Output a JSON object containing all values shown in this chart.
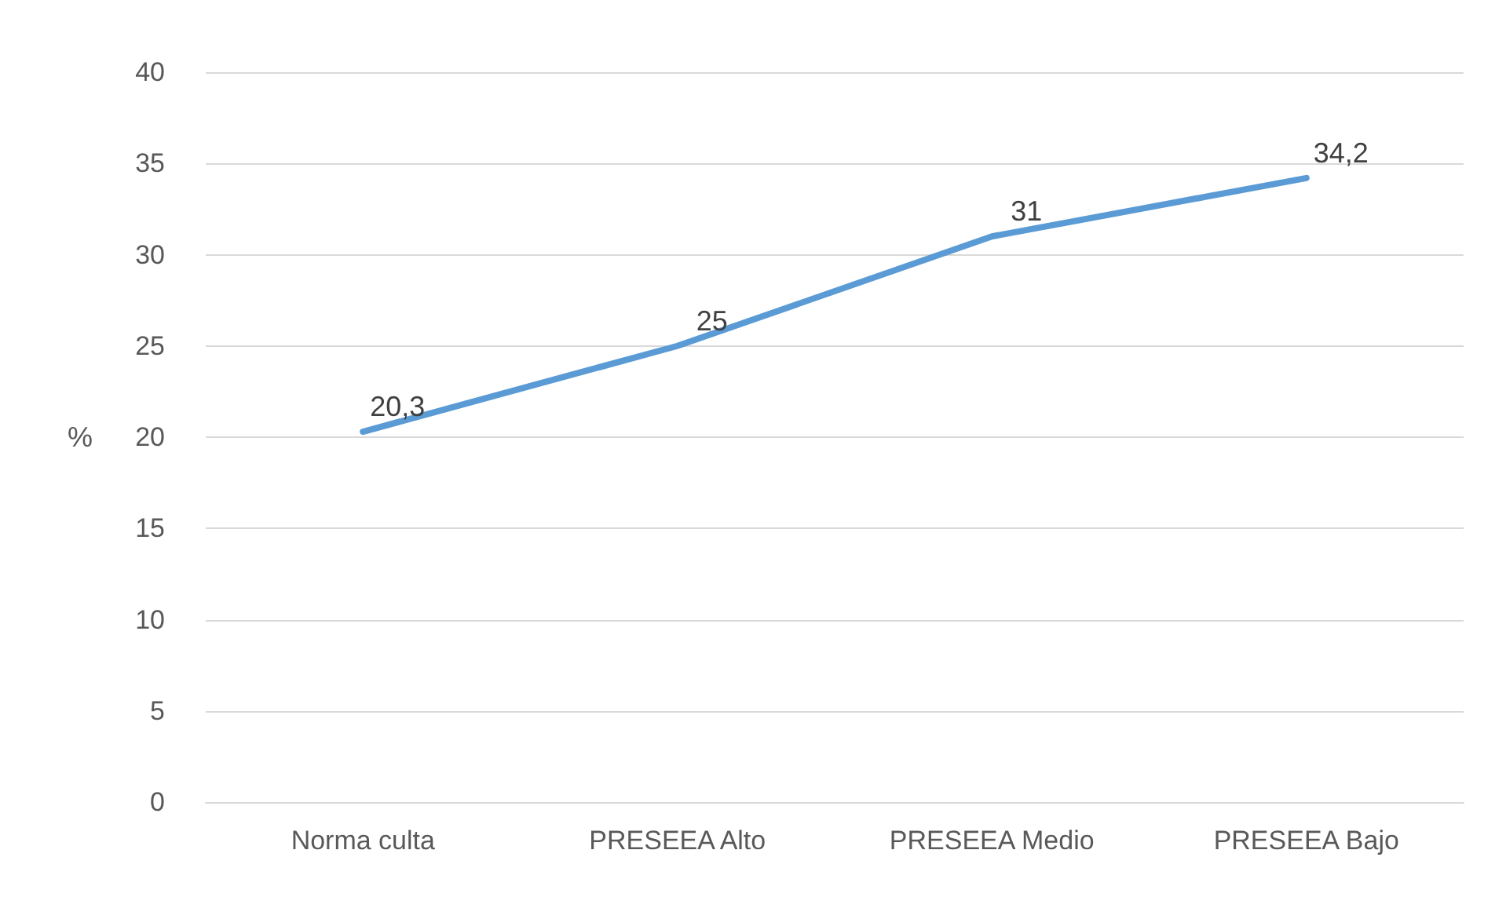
{
  "chart_data": {
    "type": "line",
    "ylabel": "%",
    "categories": [
      "Norma culta",
      "PRESEEA Alto",
      "PRESEEA Medio",
      "PRESEEA Bajo"
    ],
    "series": [
      {
        "color": "#5b9bd5",
        "values": [
          20.3,
          25,
          31,
          34.2
        ],
        "value_labels": [
          "20,3",
          "25",
          "31",
          "34,2"
        ]
      }
    ],
    "ylim": [
      0,
      40
    ],
    "yticks": [
      0,
      5,
      10,
      15,
      20,
      25,
      30,
      35,
      40
    ],
    "grid": "y",
    "marker": "none",
    "line_style": "solid"
  }
}
